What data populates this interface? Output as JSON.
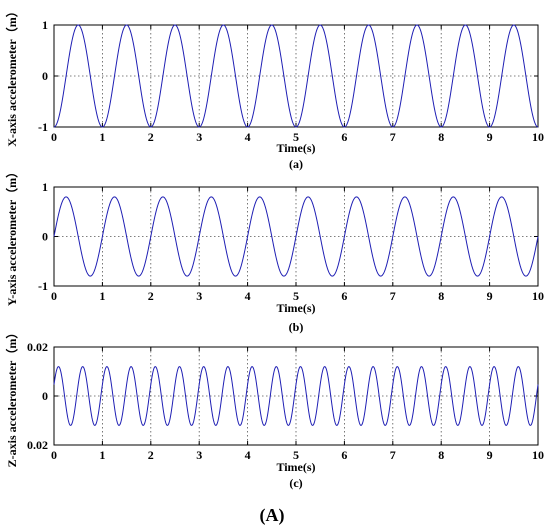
{
  "figure_caption": "(A)",
  "colors": {
    "series": "#1f1fb4",
    "axis": "#000000",
    "grid": "#555555"
  },
  "chart_data": [
    {
      "type": "line",
      "panel_label": "(a)",
      "xlabel": "Time(s)",
      "ylabel": "X-axis accelerometer（m）",
      "xlim": [
        0,
        10
      ],
      "ylim": [
        -1,
        1
      ],
      "x_ticks": [
        "0",
        "1",
        "2",
        "3",
        "4",
        "5",
        "6",
        "7",
        "8",
        "9",
        "10"
      ],
      "y_ticks": [
        "-1",
        "0",
        "1"
      ],
      "grid": "dotted",
      "series": [
        {
          "function": "-cos(2*pi*1*t)",
          "amplitude": 1,
          "frequency_hz": 1,
          "phase_deg": 180
        }
      ]
    },
    {
      "type": "line",
      "panel_label": "(b)",
      "xlabel": "Time(s)",
      "ylabel": "Y-axis accelerometer（m）",
      "xlim": [
        0,
        10
      ],
      "ylim": [
        -1,
        1
      ],
      "x_ticks": [
        "0",
        "1",
        "2",
        "3",
        "4",
        "5",
        "6",
        "7",
        "8",
        "9",
        "10"
      ],
      "y_ticks": [
        "-1",
        "0",
        "1"
      ],
      "grid": "dotted",
      "series": [
        {
          "function": "0.8*sin(2*pi*1*t)",
          "amplitude": 0.8,
          "frequency_hz": 1,
          "phase_deg": 0
        }
      ]
    },
    {
      "type": "line",
      "panel_label": "(c)",
      "xlabel": "Time(s)",
      "ylabel": "Z-axis accelerometer（m）",
      "xlim": [
        0,
        10
      ],
      "ylim": [
        -0.02,
        0.02
      ],
      "x_ticks": [
        "0",
        "1",
        "2",
        "3",
        "4",
        "5",
        "6",
        "7",
        "8",
        "9",
        "10"
      ],
      "y_ticks": [
        "0.02",
        "0",
        "0.02"
      ],
      "grid": "dotted",
      "series": [
        {
          "function": "0.012*sin(2*pi*2*t+0.4)",
          "amplitude": 0.012,
          "frequency_hz": 2,
          "phase_deg": 23
        }
      ]
    }
  ]
}
